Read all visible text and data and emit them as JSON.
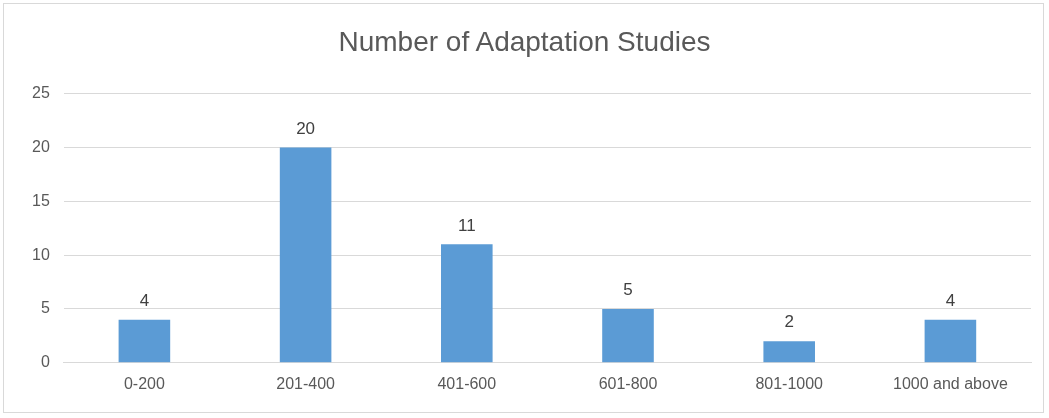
{
  "chart_data": {
    "type": "bar",
    "title": "Number of Adaptation Studies",
    "categories": [
      "0-200",
      "201-400",
      "401-600",
      "601-800",
      "801-1000",
      "1000 and above"
    ],
    "values": [
      4,
      20,
      11,
      5,
      2,
      4
    ],
    "color": "#5b9bd5",
    "ylim": [
      0,
      25
    ],
    "yticks": [
      0,
      5,
      10,
      15,
      20,
      25
    ],
    "grid": "y",
    "legend": false,
    "data_labels": true
  }
}
